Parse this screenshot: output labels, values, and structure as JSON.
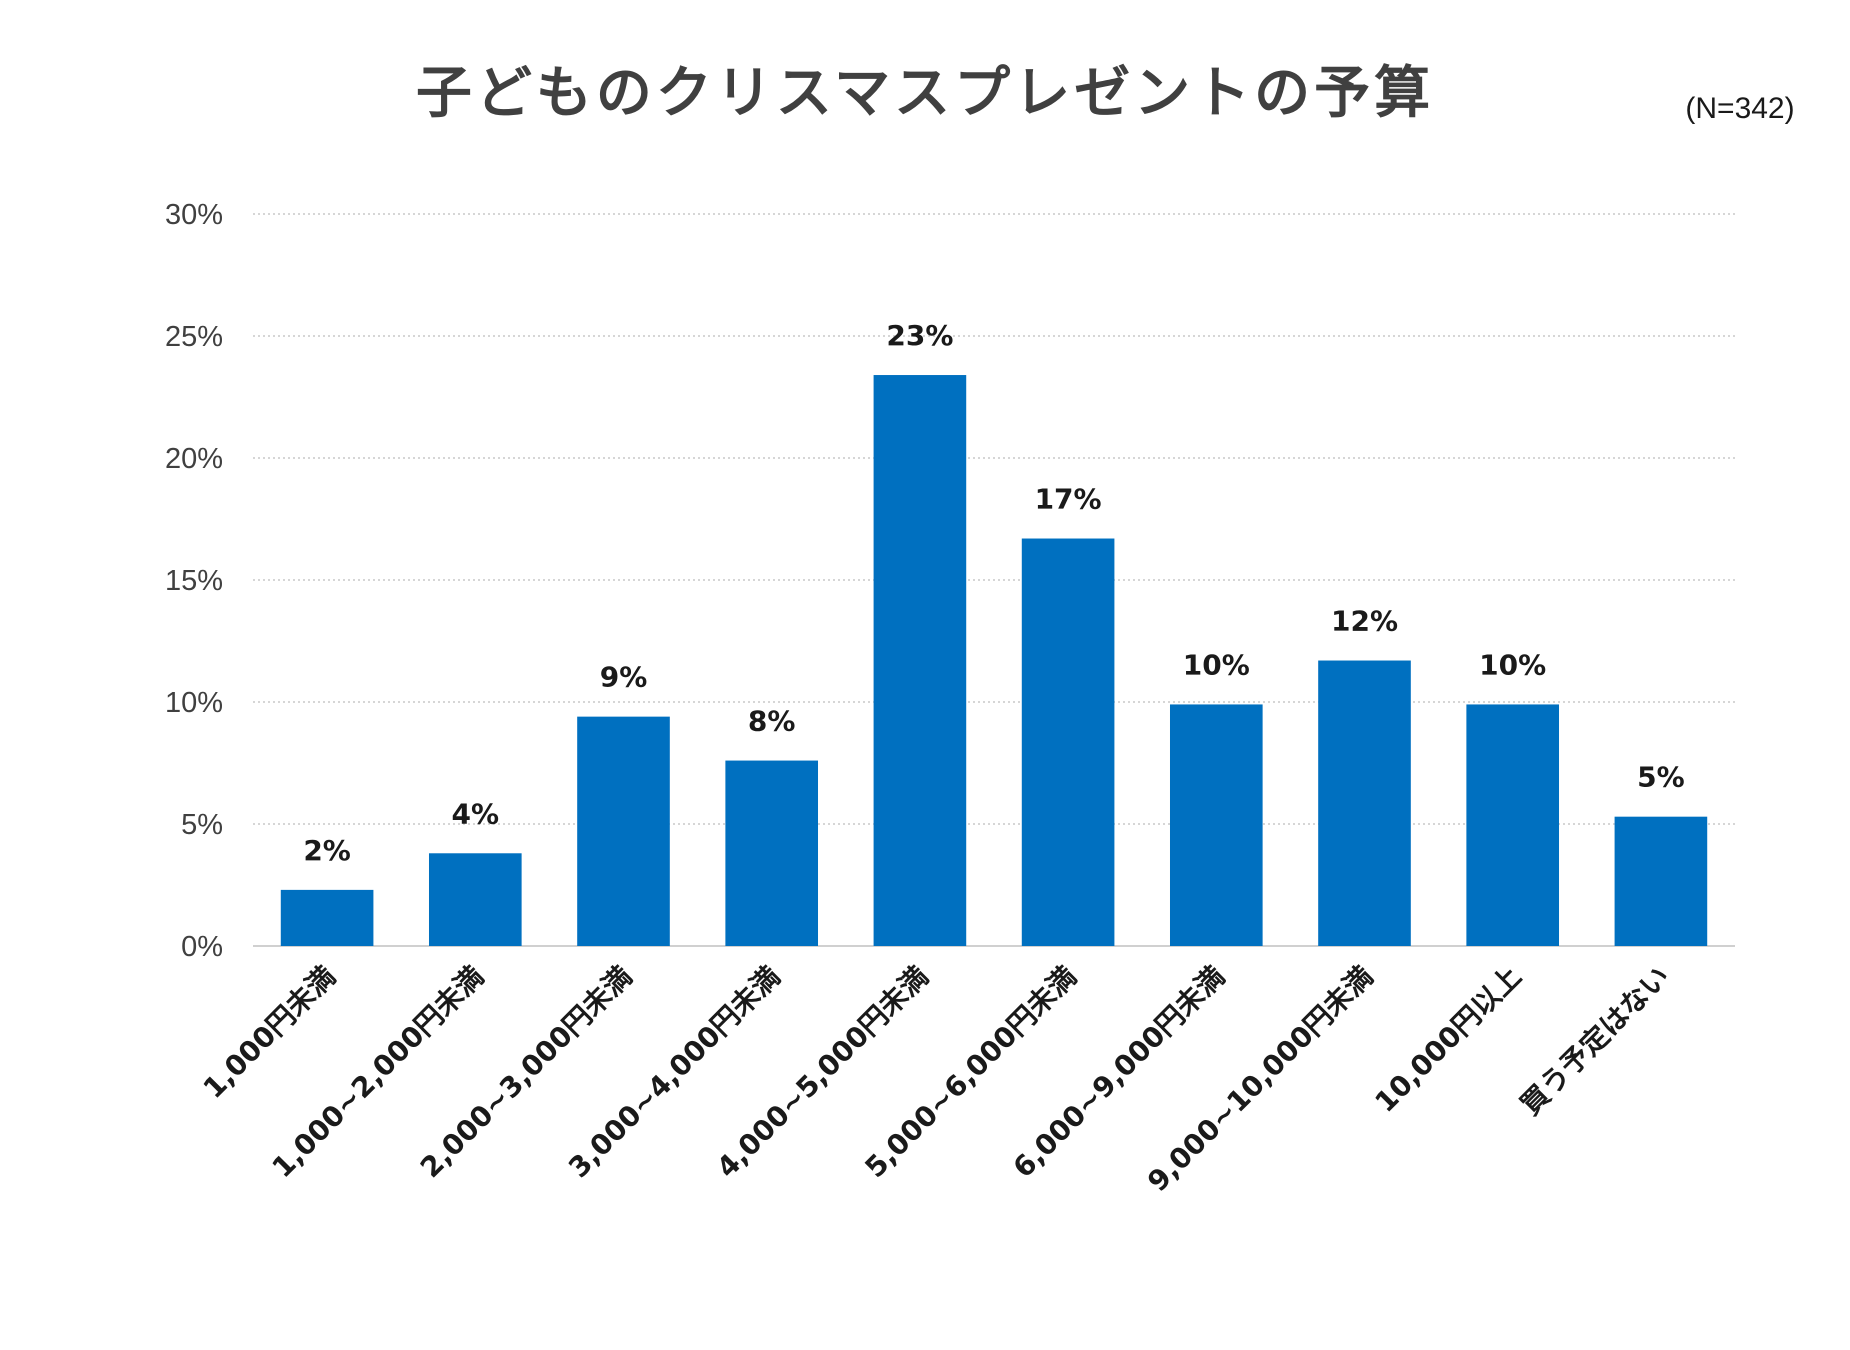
{
  "title": "子どものクリスマスプレゼントの予算",
  "sample_size": "(N=342)",
  "chart_data": {
    "type": "bar",
    "title": "子どものクリスマスプレゼントの予算",
    "xlabel": "",
    "ylabel": "",
    "ylim": [
      0,
      30
    ],
    "y_ticks": [
      "0%",
      "5%",
      "10%",
      "15%",
      "20%",
      "25%",
      "30%"
    ],
    "grid": true,
    "bar_color": "#0070C0",
    "categories": [
      "1,000円未満",
      "1,000~2,000円未満",
      "2,000~3,000円未満",
      "3,000~4,000円未満",
      "4,000~5,000円未満",
      "5,000~6,000円未満",
      "6,000~9,000円未満",
      "9,000~10,000円未満",
      "10,000円以上",
      "買う予定はない"
    ],
    "values": [
      2.3,
      3.8,
      9.4,
      7.6,
      23.4,
      16.7,
      9.9,
      11.7,
      9.9,
      5.3
    ],
    "data_labels": [
      "2%",
      "4%",
      "9%",
      "8%",
      "23%",
      "17%",
      "10%",
      "12%",
      "10%",
      "5%"
    ]
  }
}
